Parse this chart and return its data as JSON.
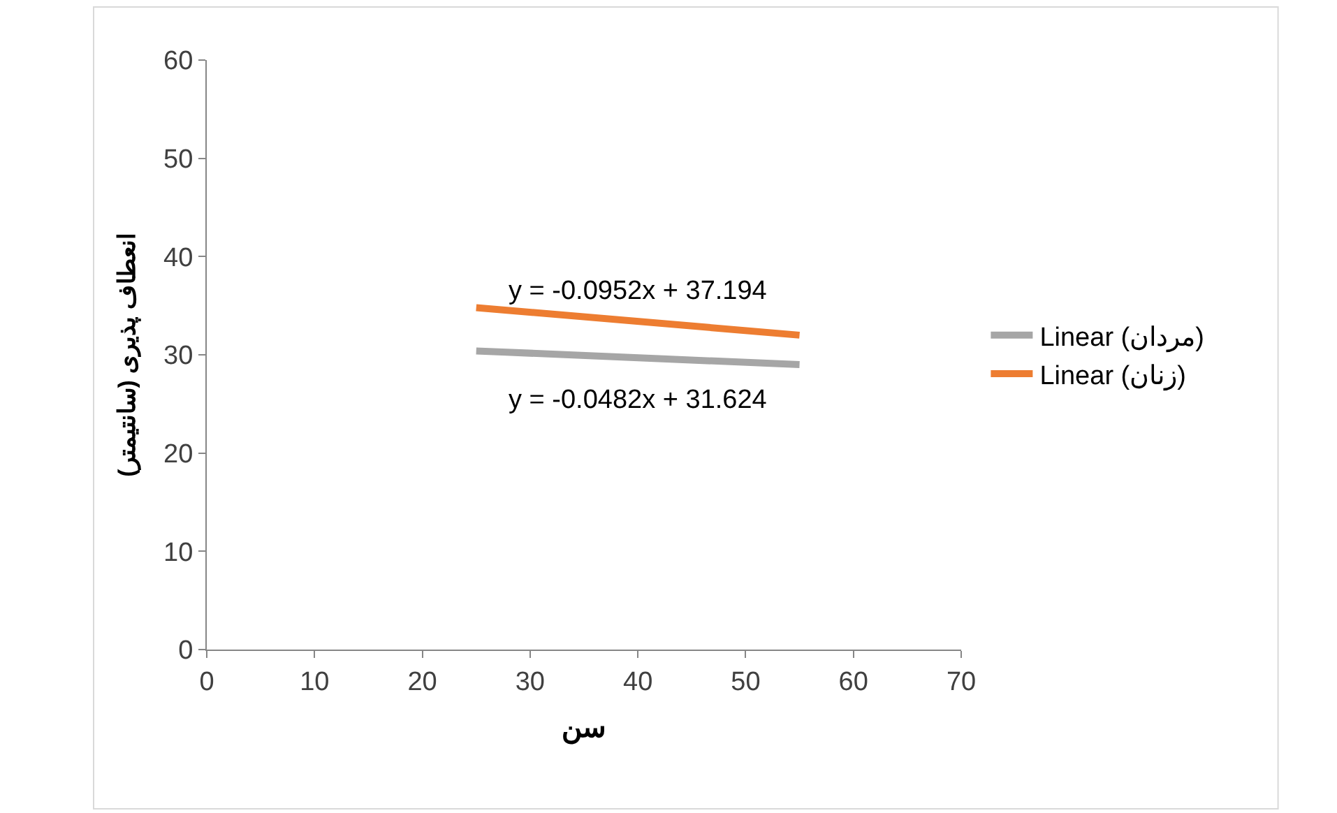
{
  "chart_data": {
    "type": "line",
    "xlabel": "سن",
    "ylabel": "انعطاف پذیری (سانتیمتر)",
    "xlim": [
      0,
      70
    ],
    "xticks": [
      0,
      10,
      20,
      30,
      40,
      50,
      60,
      70
    ],
    "ylim": [
      0,
      60
    ],
    "yticks": [
      0,
      10,
      20,
      30,
      40,
      50,
      60
    ],
    "x": [
      25,
      55
    ],
    "series": [
      {
        "name": "Linear (مردان)",
        "color": "#a6a6a6",
        "values": [
          30.4,
          29.0
        ]
      },
      {
        "name": "Linear (زنان)",
        "color": "#ed7d31",
        "values": [
          34.8,
          32.0
        ]
      }
    ],
    "annotations": [
      {
        "text": "y = -0.0952x + 37.194",
        "x": 40,
        "y": 33.4
      },
      {
        "text": "y = -0.0482x + 31.624",
        "x": 40,
        "y": 29.7
      }
    ],
    "legend": "right",
    "grid": false,
    "marker": "none",
    "line_style": "solid"
  }
}
